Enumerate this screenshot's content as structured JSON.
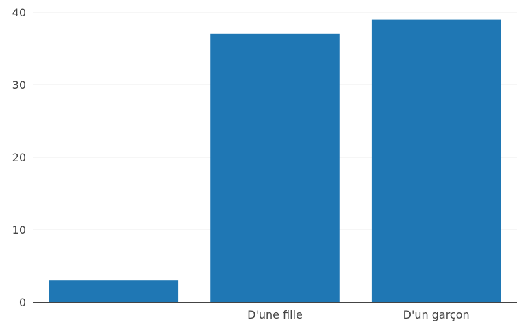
{
  "chart_data": {
    "type": "bar",
    "title": "",
    "xlabel": "",
    "ylabel": "",
    "categories": [
      "",
      "D'une fille",
      "D'un garçon"
    ],
    "values": [
      3,
      37,
      39
    ],
    "ylim": [
      0,
      40
    ],
    "yticks": [
      0,
      10,
      20,
      30,
      40
    ],
    "grid": true,
    "legend": "none",
    "colors": {
      "bar": "#1f77b4",
      "grid": "#eeeeee",
      "axis": "#444444",
      "text": "#444444"
    }
  }
}
